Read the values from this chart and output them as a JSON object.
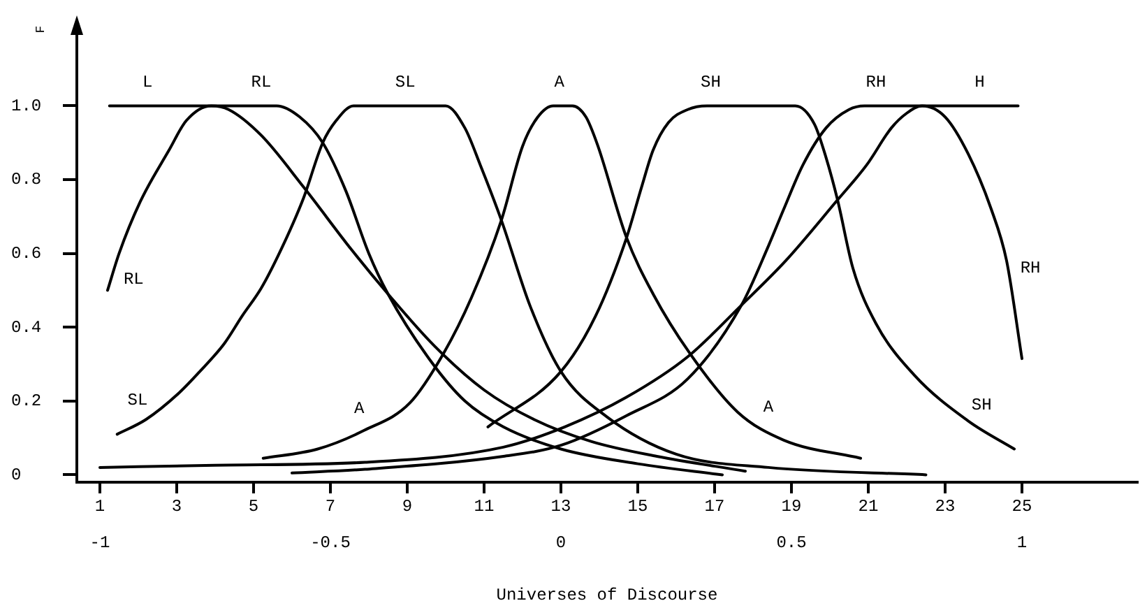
{
  "chart_data": {
    "type": "line",
    "xlabel": "Universes of Discourse",
    "ylabel": "F",
    "marker": "none",
    "xlim": [
      0.4,
      28
    ],
    "xticks": [
      1,
      3,
      5,
      7,
      9,
      11,
      13,
      15,
      17,
      19,
      21,
      23,
      25
    ],
    "x2lim": [
      -1.05,
      1.25
    ],
    "x2ticks": [
      -1,
      -0.5,
      0,
      0.5,
      1
    ],
    "ylim": [
      -0.02,
      1.23
    ],
    "yticks": [
      0,
      0.2,
      0.4,
      0.6,
      0.8,
      {
        "value": 1,
        "label": "1.0"
      }
    ],
    "series": [
      {
        "color": "#000000",
        "x": [
          1.25,
          3,
          5,
          5.6,
          6.2,
          6.8,
          7.4,
          8.0,
          8.5,
          9.6,
          10.5,
          11.5,
          13,
          15,
          17.2
        ],
        "values": [
          1,
          1,
          1,
          1,
          0.97,
          0.9,
          0.77,
          0.6,
          0.49,
          0.31,
          0.2,
          0.13,
          0.07,
          0.03,
          0
        ]
      },
      {
        "color": "#000000",
        "x": [
          1.2,
          1.5,
          2.05,
          2.8,
          3.25,
          3.9,
          4.35,
          5.2,
          6.3,
          7.55,
          8.5,
          9.7,
          11,
          12.3,
          13.8,
          15.5,
          17.8
        ],
        "values": [
          0.5,
          0.6,
          0.74,
          0.88,
          0.96,
          1,
          0.99,
          0.92,
          0.78,
          0.61,
          0.49,
          0.35,
          0.23,
          0.15,
          0.09,
          0.05,
          0.01
        ]
      },
      {
        "color": "#000000",
        "x": [
          1.45,
          2.2,
          3.04,
          3.6,
          4.24,
          4.7,
          5.2,
          5.7,
          6.3,
          6.8,
          7.15,
          7.6,
          10,
          10.5,
          10.9,
          11.45,
          12.2,
          13,
          14.2,
          16,
          18.4,
          22.5
        ],
        "values": [
          0.11,
          0.15,
          0.22,
          0.28,
          0.356,
          0.43,
          0.506,
          0.607,
          0.75,
          0.9,
          0.96,
          1,
          1,
          0.94,
          0.84,
          0.69,
          0.457,
          0.28,
          0.157,
          0.056,
          0.02,
          0
        ]
      },
      {
        "color": "#000000",
        "x": [
          5.25,
          6.67,
          7.87,
          9.07,
          9.95,
          10.67,
          11.45,
          12,
          12.4,
          12.8,
          13.3,
          13.65,
          13.95,
          14.7,
          15.4,
          16.35,
          17.6,
          18.8,
          20.8
        ],
        "values": [
          0.045,
          0.07,
          0.12,
          0.195,
          0.33,
          0.48,
          0.69,
          0.89,
          0.97,
          1,
          1,
          0.97,
          0.895,
          0.645,
          0.49,
          0.33,
          0.17,
          0.094,
          0.045
        ]
      },
      {
        "color": "#000000",
        "x": [
          11.1,
          13,
          13.9,
          14.7,
          15.1,
          15.4,
          15.8,
          16.3,
          16.8,
          19.1,
          19.6,
          19.9,
          20.2,
          20.6,
          21.2,
          22.2,
          23.6,
          24.8
        ],
        "values": [
          0.13,
          0.28,
          0.43,
          0.64,
          0.78,
          0.88,
          0.955,
          0.99,
          1,
          1,
          0.95,
          0.86,
          0.745,
          0.56,
          0.41,
          0.27,
          0.146,
          0.07
        ]
      },
      {
        "color": "#000000",
        "x": [
          1,
          4,
          7.9,
          11.5,
          13.1,
          14.7,
          16.3,
          17.7,
          18.85,
          20.2,
          20.96,
          21.6,
          22,
          22.4,
          23,
          23.6,
          24.2,
          24.6,
          25
        ],
        "values": [
          0.02,
          0.026,
          0.034,
          0.075,
          0.13,
          0.21,
          0.32,
          0.46,
          0.58,
          0.745,
          0.84,
          0.94,
          0.98,
          1,
          0.97,
          0.87,
          0.72,
          0.58,
          0.315
        ]
      },
      {
        "color": "#000000",
        "x": [
          6,
          7.9,
          11.5,
          13,
          14.7,
          16.3,
          17.7,
          18.4,
          18.8,
          19.3,
          19.9,
          20.5,
          20.9,
          24.9
        ],
        "values": [
          0.005,
          0.015,
          0.05,
          0.08,
          0.16,
          0.26,
          0.46,
          0.62,
          0.72,
          0.84,
          0.94,
          0.99,
          1,
          1
        ]
      }
    ],
    "annotations": [
      {
        "text": "L",
        "x": 2.24,
        "y": 1
      },
      {
        "text": "RL",
        "x": 5.2,
        "y": 1
      },
      {
        "text": "SL",
        "x": 8.95,
        "y": 1
      },
      {
        "text": "A",
        "x": 12.96,
        "y": 1
      },
      {
        "text": "SH",
        "x": 16.9,
        "y": 1
      },
      {
        "text": "RH",
        "x": 21.2,
        "y": 1
      },
      {
        "text": "H",
        "x": 23.9,
        "y": 1
      },
      {
        "text": "RL",
        "x": 1.29,
        "y": 0.53
      },
      {
        "text": "SL",
        "x": 1.98,
        "y": 0.137
      },
      {
        "text": "A",
        "x": 7.75,
        "y": 0.115
      },
      {
        "text": "A",
        "x": 18.4,
        "y": 0.119
      },
      {
        "text": "SH",
        "x": 23.95,
        "y": 0.124
      },
      {
        "text": "RH",
        "x": 24.63,
        "y": 0.56
      }
    ]
  }
}
